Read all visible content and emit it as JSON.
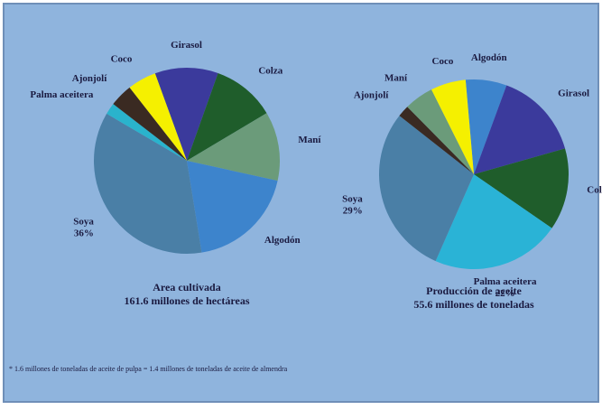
{
  "chart_data": [
    {
      "type": "pie",
      "title": "Area cultivada",
      "subtitle": "161.6 millones de hectáreas",
      "categories": [
        "Girasol",
        "Colza",
        "Maní",
        "Algodón",
        "Soya",
        "Palma aceitera",
        "Ajonjolí",
        "Coco"
      ],
      "values": [
        11,
        11,
        12,
        19,
        36,
        2,
        4,
        5
      ],
      "value_labels": [
        null,
        null,
        null,
        null,
        "36%",
        null,
        null,
        null
      ],
      "colors": [
        "#3b3a9c",
        "#1f5d2b",
        "#6b9b7a",
        "#3d84cc",
        "#4a7fa6",
        "#2ab3cc",
        "#3a2a22",
        "#f5f000"
      ]
    },
    {
      "type": "pie",
      "title": "Producción de aceite",
      "subtitle": "55.6 millones de toneladas",
      "categories": [
        "Algodón",
        "Girasol",
        "Colza",
        "Palma aceitera",
        "Soya",
        "Ajonjolí",
        "Maní",
        "Coco"
      ],
      "values": [
        7,
        15,
        14,
        22,
        29,
        2,
        5,
        6
      ],
      "value_labels": [
        null,
        null,
        null,
        "22%",
        "29%",
        null,
        null,
        null
      ],
      "colors": [
        "#3d84cc",
        "#3b3a9c",
        "#1f5d2b",
        "#2ab3d6",
        "#4a7fa6",
        "#3a2a22",
        "#6b9b7a",
        "#f5f000"
      ]
    }
  ],
  "footnote": "* 1.6 millones de toneladas de aceite de pulpa = 1.4 millones de toneladas de aceite de almendra"
}
